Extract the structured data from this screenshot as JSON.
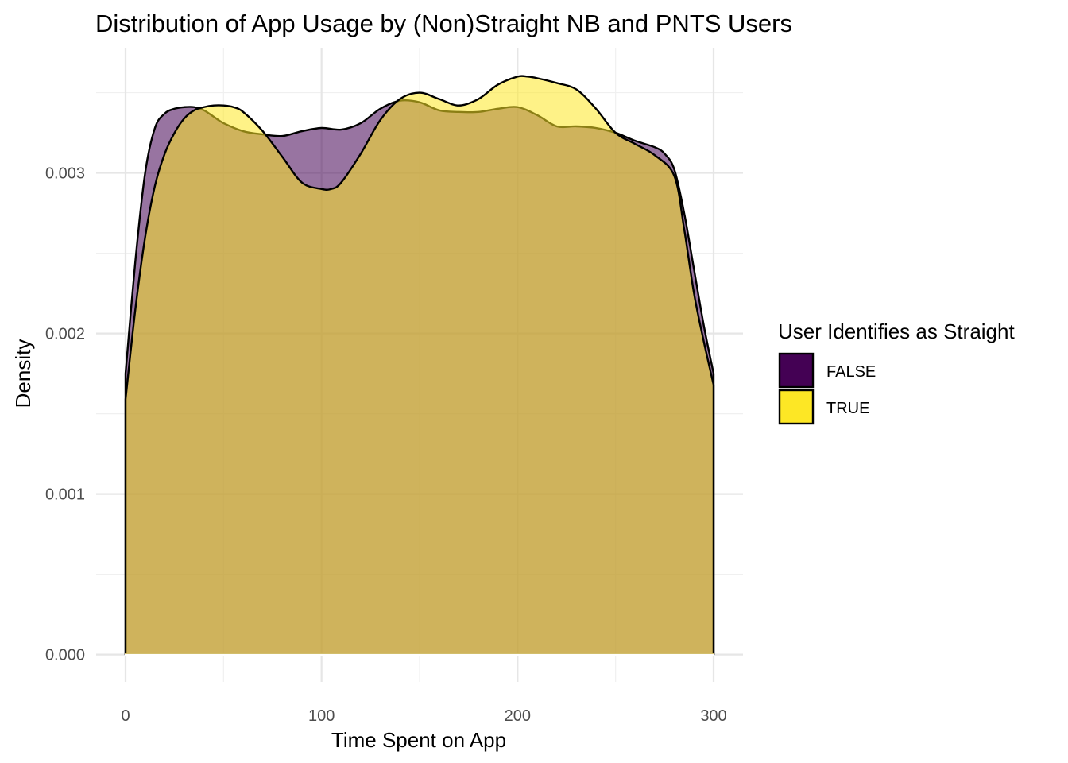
{
  "chart_data": {
    "type": "area",
    "title": "Distribution of App Usage by (Non)Straight NB and PNTS Users",
    "xlabel": "Time Spent on App",
    "ylabel": "Density",
    "xlim": [
      -15,
      315
    ],
    "ylim": [
      -0.00017,
      0.00378
    ],
    "x_ticks": [
      0,
      100,
      200,
      300
    ],
    "x_tick_labels": [
      "0",
      "100",
      "200",
      "300"
    ],
    "x_minor_ticks": [
      50,
      150,
      250
    ],
    "y_ticks": [
      0.0,
      0.001,
      0.002,
      0.003
    ],
    "y_tick_labels": [
      "0.000",
      "0.001",
      "0.002",
      "0.003"
    ],
    "y_minor_ticks": [
      0.0005,
      0.0015,
      0.0025,
      0.0035
    ],
    "grid": true,
    "legend": {
      "title": "User Identifies as Straight",
      "position": "right"
    },
    "series": [
      {
        "name": "FALSE",
        "color": "#440154",
        "x": [
          0,
          5,
          10,
          15,
          20,
          25,
          30,
          35,
          40,
          45,
          50,
          60,
          70,
          80,
          90,
          100,
          110,
          120,
          130,
          140,
          150,
          160,
          170,
          180,
          190,
          200,
          210,
          220,
          230,
          240,
          250,
          260,
          270,
          275,
          280,
          285,
          290,
          295,
          300
        ],
        "y": [
          0.00175,
          0.00245,
          0.003,
          0.00328,
          0.00337,
          0.0034,
          0.00341,
          0.00341,
          0.00339,
          0.00335,
          0.00331,
          0.00326,
          0.00324,
          0.00323,
          0.00326,
          0.00328,
          0.00327,
          0.00331,
          0.0034,
          0.00345,
          0.00344,
          0.00339,
          0.00338,
          0.00338,
          0.0034,
          0.00341,
          0.00336,
          0.00329,
          0.00329,
          0.00328,
          0.00325,
          0.0032,
          0.00316,
          0.00312,
          0.00302,
          0.00275,
          0.0024,
          0.00205,
          0.00175
        ]
      },
      {
        "name": "TRUE",
        "color": "#fde725",
        "x": [
          0,
          5,
          10,
          15,
          20,
          25,
          30,
          35,
          40,
          45,
          50,
          55,
          60,
          70,
          80,
          90,
          100,
          105,
          110,
          120,
          130,
          140,
          150,
          160,
          170,
          180,
          190,
          200,
          205,
          210,
          220,
          230,
          240,
          250,
          260,
          270,
          280,
          285,
          290,
          295,
          300
        ],
        "y": [
          0.00159,
          0.00215,
          0.0026,
          0.00292,
          0.00312,
          0.00325,
          0.00334,
          0.00339,
          0.00341,
          0.00342,
          0.00342,
          0.00341,
          0.00338,
          0.00326,
          0.0031,
          0.00294,
          0.0029,
          0.0029,
          0.00294,
          0.00312,
          0.00333,
          0.00346,
          0.0035,
          0.00346,
          0.00342,
          0.00346,
          0.00355,
          0.0036,
          0.0036,
          0.00359,
          0.00356,
          0.00352,
          0.0034,
          0.00325,
          0.00318,
          0.00311,
          0.00298,
          0.00265,
          0.00225,
          0.00195,
          0.00168
        ]
      }
    ]
  }
}
